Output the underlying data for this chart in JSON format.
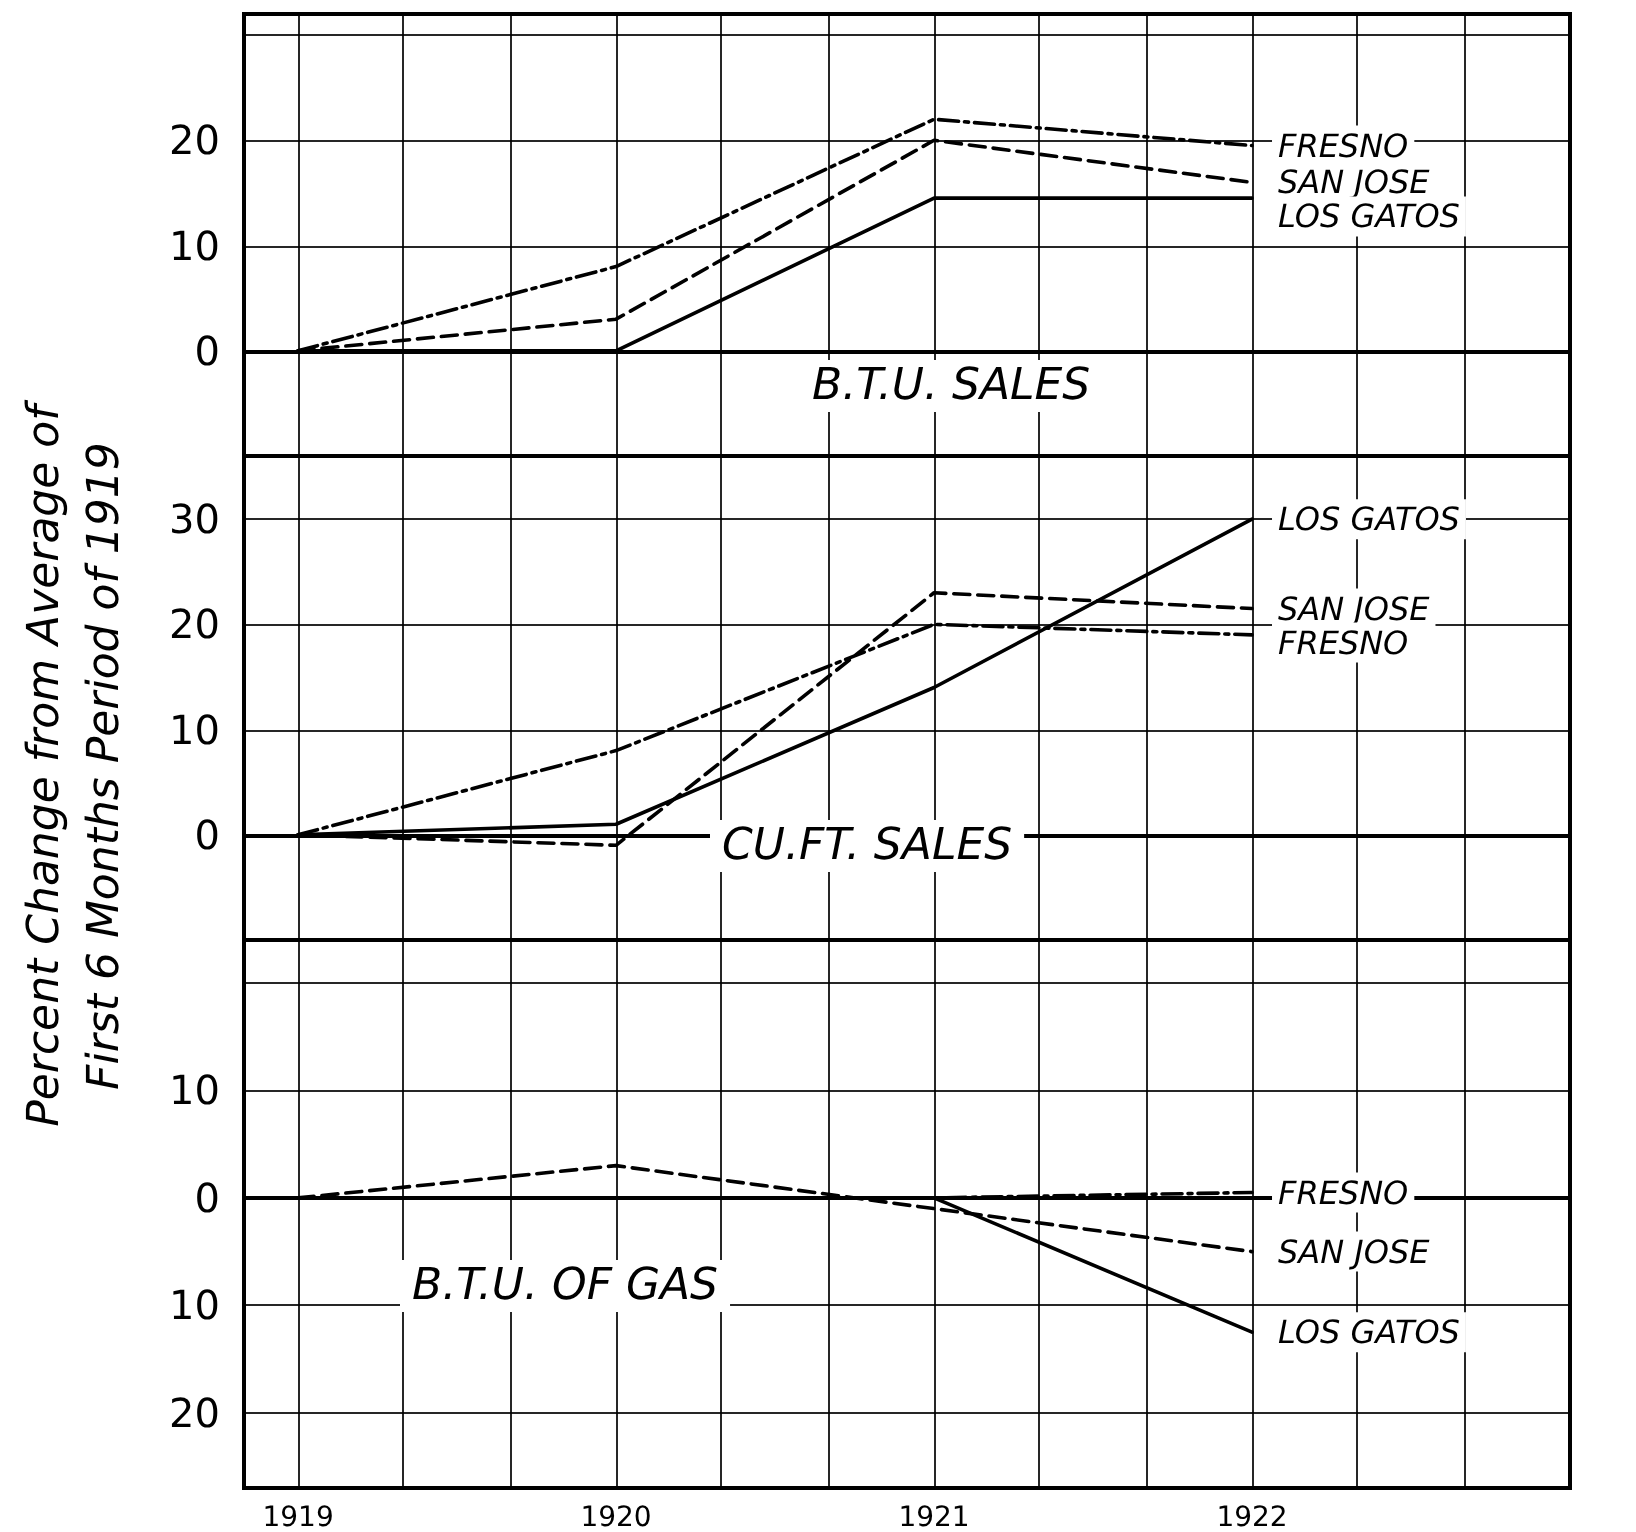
{
  "chart_data": [
    {
      "type": "line",
      "title": "B.T.U. SALES",
      "x": [
        1919,
        1920,
        1921,
        1922
      ],
      "series": [
        {
          "name": "FRESNO",
          "color": "#000000",
          "line_style": "dashdot",
          "values": [
            0,
            8,
            22,
            19.5
          ]
        },
        {
          "name": "SAN JOSE",
          "color": "#000000",
          "line_style": "dashed",
          "values": [
            0,
            3,
            20,
            16
          ]
        },
        {
          "name": "LOS GATOS",
          "color": "#000000",
          "line_style": "solid",
          "values": [
            0,
            0,
            14.5,
            14.5
          ]
        }
      ],
      "xlim": [
        1918.83,
        1923
      ],
      "xticks": [
        1919,
        {
          "value": 1919.33,
          "label": null
        },
        {
          "value": 1919.67,
          "label": null
        },
        1920,
        {
          "value": 1920.33,
          "label": null
        },
        {
          "value": 1920.67,
          "label": null
        },
        1921,
        {
          "value": 1921.33,
          "label": null
        },
        {
          "value": 1921.67,
          "label": null
        },
        1922,
        {
          "value": 1922.33,
          "label": null
        },
        {
          "value": 1922.67,
          "label": null
        }
      ],
      "ylim": [
        -10,
        32
      ],
      "yticks": [
        0,
        10,
        20,
        {
          "value": 30,
          "label": null
        }
      ],
      "grid": true,
      "legend": false,
      "marker": "none",
      "tick_labels": "y"
    },
    {
      "type": "line",
      "title": "CU.FT. SALES",
      "ylabel": "Percent Change from Average of\nFirst 6 Months Period of 1919",
      "x": [
        1919,
        1920,
        1921,
        1922
      ],
      "series": [
        {
          "name": "LOS GATOS",
          "color": "#000000",
          "line_style": "solid",
          "values": [
            0,
            1,
            14,
            30
          ]
        },
        {
          "name": "SAN JOSE",
          "color": "#000000",
          "line_style": "dashed",
          "values": [
            0,
            -1,
            23,
            21.5
          ]
        },
        {
          "name": "FRESNO",
          "color": "#000000",
          "line_style": "dashdot",
          "values": [
            0,
            8,
            20,
            19
          ]
        }
      ],
      "xlim": [
        1918.83,
        1923
      ],
      "xticks": [
        1919,
        {
          "value": 1919.33,
          "label": null
        },
        {
          "value": 1919.67,
          "label": null
        },
        1920,
        {
          "value": 1920.33,
          "label": null
        },
        {
          "value": 1920.67,
          "label": null
        },
        1921,
        {
          "value": 1921.33,
          "label": null
        },
        {
          "value": 1921.67,
          "label": null
        },
        1922,
        {
          "value": 1922.33,
          "label": null
        },
        {
          "value": 1922.67,
          "label": null
        }
      ],
      "ylim": [
        -10,
        36
      ],
      "yticks": [
        0,
        10,
        20,
        30
      ],
      "grid": true,
      "legend": false,
      "marker": "none",
      "tick_labels": "y"
    },
    {
      "type": "line",
      "title": "B.T.U. OF GAS",
      "x": [
        1919,
        1920,
        1921,
        1922
      ],
      "series": [
        {
          "name": "FRESNO",
          "color": "#000000",
          "line_style": "dashdot",
          "values": [
            0,
            0,
            0,
            0.5
          ]
        },
        {
          "name": "SAN JOSE",
          "color": "#000000",
          "line_style": "dashed",
          "values": [
            0,
            3,
            -1,
            -5
          ]
        },
        {
          "name": "LOS GATOS",
          "color": "#000000",
          "line_style": "solid",
          "values": [
            0,
            0,
            0,
            -12.5
          ]
        }
      ],
      "xlim": [
        1918.83,
        1923
      ],
      "xticks": [
        1919,
        {
          "value": 1919.33,
          "label": null
        },
        {
          "value": 1919.67,
          "label": null
        },
        1920,
        {
          "value": 1920.33,
          "label": null
        },
        {
          "value": 1920.67,
          "label": null
        },
        1921,
        {
          "value": 1921.33,
          "label": null
        },
        {
          "value": 1921.67,
          "label": null
        },
        1922,
        {
          "value": 1922.33,
          "label": null
        },
        {
          "value": 1922.67,
          "label": null
        }
      ],
      "ylim": [
        -27,
        24
      ],
      "yticks": [
        {
          "value": 20,
          "label": null
        },
        {
          "value": 10,
          "label": "10"
        },
        0,
        {
          "value": -10,
          "label": "10"
        },
        {
          "value": -20,
          "label": "20"
        }
      ],
      "grid": true,
      "legend": false,
      "marker": "none"
    }
  ]
}
